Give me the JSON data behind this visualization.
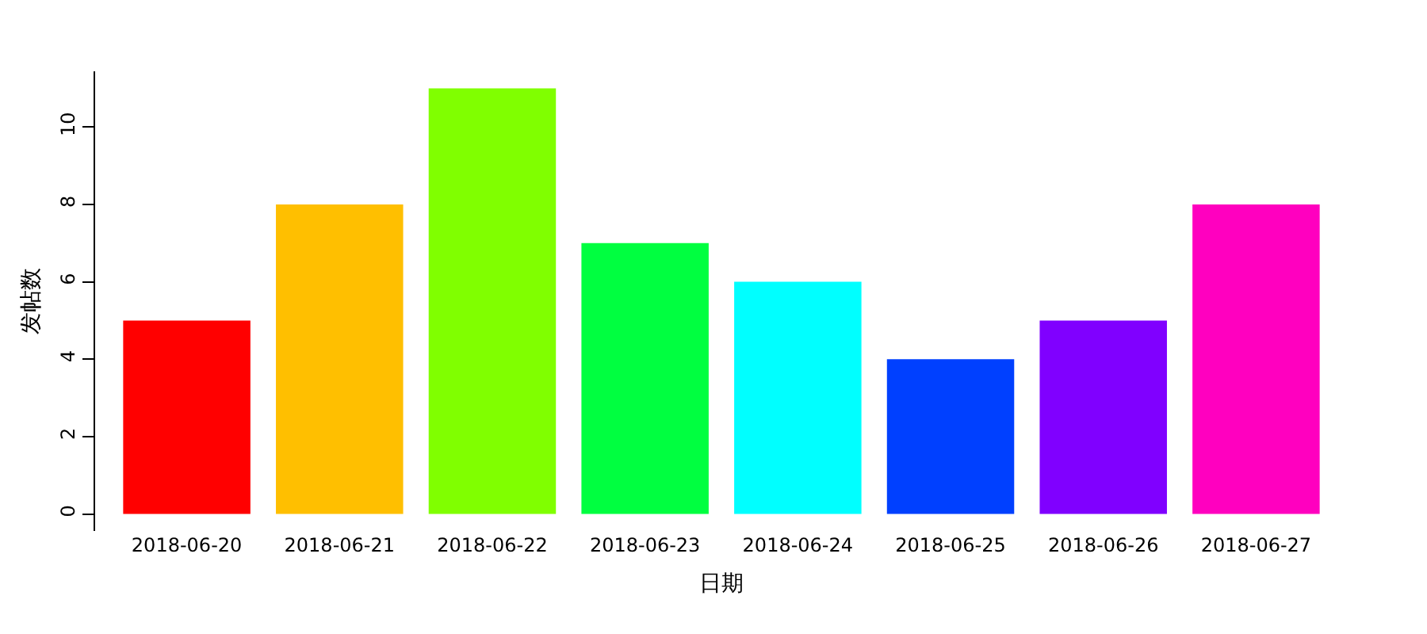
{
  "chart_data": {
    "type": "bar",
    "xlabel": "日期",
    "ylabel": "发帖数",
    "categories": [
      "2018-06-20",
      "2018-06-21",
      "2018-06-22",
      "2018-06-23",
      "2018-06-24",
      "2018-06-25",
      "2018-06-26",
      "2018-06-27"
    ],
    "values": [
      5,
      8,
      11,
      7,
      6,
      4,
      5,
      8
    ],
    "colors": [
      "#ff0000",
      "#ffbf00",
      "#80ff00",
      "#00ff40",
      "#00ffff",
      "#0040ff",
      "#8000ff",
      "#ff00bf"
    ],
    "ylim": [
      -0.44,
      11.44
    ],
    "yticks": [
      0,
      2,
      4,
      6,
      8,
      10
    ]
  }
}
